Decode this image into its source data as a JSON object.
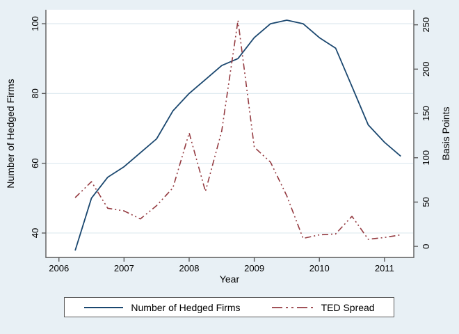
{
  "figure": {
    "background_color": "#e8f0f5",
    "plot_background_color": "#ffffff",
    "axis_color": "#5a5a5a",
    "grid_color": "#e0ebf1",
    "text_color": "#000000"
  },
  "chart_data": {
    "type": "line",
    "title": "",
    "xlabel": "Year",
    "ylabel_left": "Number of Hedged Firms",
    "ylabel_right": "Basis Points",
    "grid": "horizontal-on-left-axis-ticks",
    "legend_position": "bottom-center-boxed",
    "x_ticks": [
      2006,
      2007,
      2008,
      2009,
      2010,
      2011
    ],
    "y_left_ticks": [
      40,
      60,
      80,
      100
    ],
    "y_right_ticks": [
      0,
      50,
      100,
      150,
      200,
      250
    ],
    "x_range": [
      2005.8,
      2011.45
    ],
    "y_left_range": [
      33,
      104
    ],
    "y_right_range": [
      -12.5,
      267
    ],
    "x": [
      2006.25,
      2006.5,
      2006.75,
      2007.0,
      2007.25,
      2007.5,
      2007.75,
      2008.0,
      2008.25,
      2008.5,
      2008.75,
      2009.0,
      2009.25,
      2009.5,
      2009.75,
      2010.0,
      2010.25,
      2010.5,
      2010.75,
      2011.0,
      2011.25
    ],
    "series": [
      {
        "name": "Number of Hedged Firms",
        "axis": "left",
        "color": "#1a476f",
        "style": "solid",
        "line_width": 1.8,
        "values": [
          35,
          50,
          56,
          59,
          63,
          67,
          75,
          80,
          84,
          88,
          90,
          96,
          100,
          101,
          100,
          96,
          93,
          82,
          71,
          66,
          62
        ]
      },
      {
        "name": "TED Spread",
        "axis": "right",
        "color": "#943a40",
        "style": "dash-dot-dot",
        "line_width": 1.6,
        "values": [
          55,
          73,
          43,
          40,
          31,
          46,
          66,
          128,
          62,
          130,
          255,
          112,
          95,
          57,
          9,
          13,
          14,
          34,
          8,
          10,
          13
        ]
      }
    ]
  }
}
